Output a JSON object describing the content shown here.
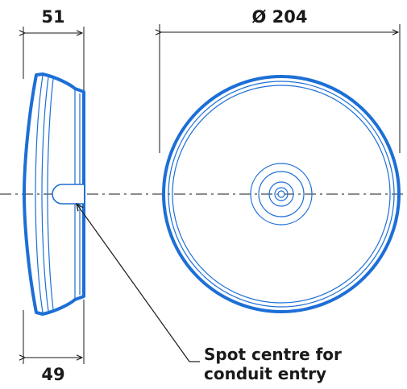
{
  "dimensions": {
    "depth_top": "51",
    "depth_bottom": "49",
    "diameter": "Ø 204"
  },
  "callout": {
    "line1": "Spot centre for",
    "line2": "conduit entry"
  },
  "colors": {
    "outline": "#1c6fd6",
    "ink": "#1a1a1a"
  }
}
